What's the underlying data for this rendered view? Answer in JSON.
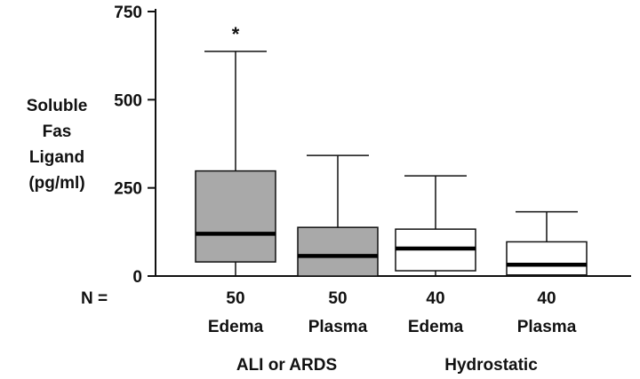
{
  "chart_data": {
    "type": "boxplot",
    "ylabel_lines": [
      "Soluble",
      "Fas",
      "Ligand",
      "(pg/ml)"
    ],
    "ylim": [
      0,
      750
    ],
    "yticks": [
      0,
      250,
      500,
      750
    ],
    "n_label": "N =",
    "groups": [
      "ALI or ARDS",
      "Hydrostatic"
    ],
    "boxes": [
      {
        "n": "50",
        "label": "Edema",
        "group": 0,
        "fill": "#a9a9a9",
        "whisker_low": 0,
        "q1": 40,
        "median": 120,
        "q3": 298,
        "whisker_high": 637,
        "annotation": "*"
      },
      {
        "n": "50",
        "label": "Plasma",
        "group": 0,
        "fill": "#a9a9a9",
        "whisker_low": 0,
        "q1": 0,
        "median": 57,
        "q3": 138,
        "whisker_high": 342,
        "annotation": ""
      },
      {
        "n": "40",
        "label": "Edema",
        "group": 1,
        "fill": "#ffffff",
        "whisker_low": 0,
        "q1": 15,
        "median": 78,
        "q3": 133,
        "whisker_high": 284,
        "annotation": ""
      },
      {
        "n": "40",
        "label": "Plasma",
        "group": 1,
        "fill": "#ffffff",
        "whisker_low": 0,
        "q1": 3,
        "median": 32,
        "q3": 97,
        "whisker_high": 182,
        "annotation": ""
      }
    ]
  }
}
